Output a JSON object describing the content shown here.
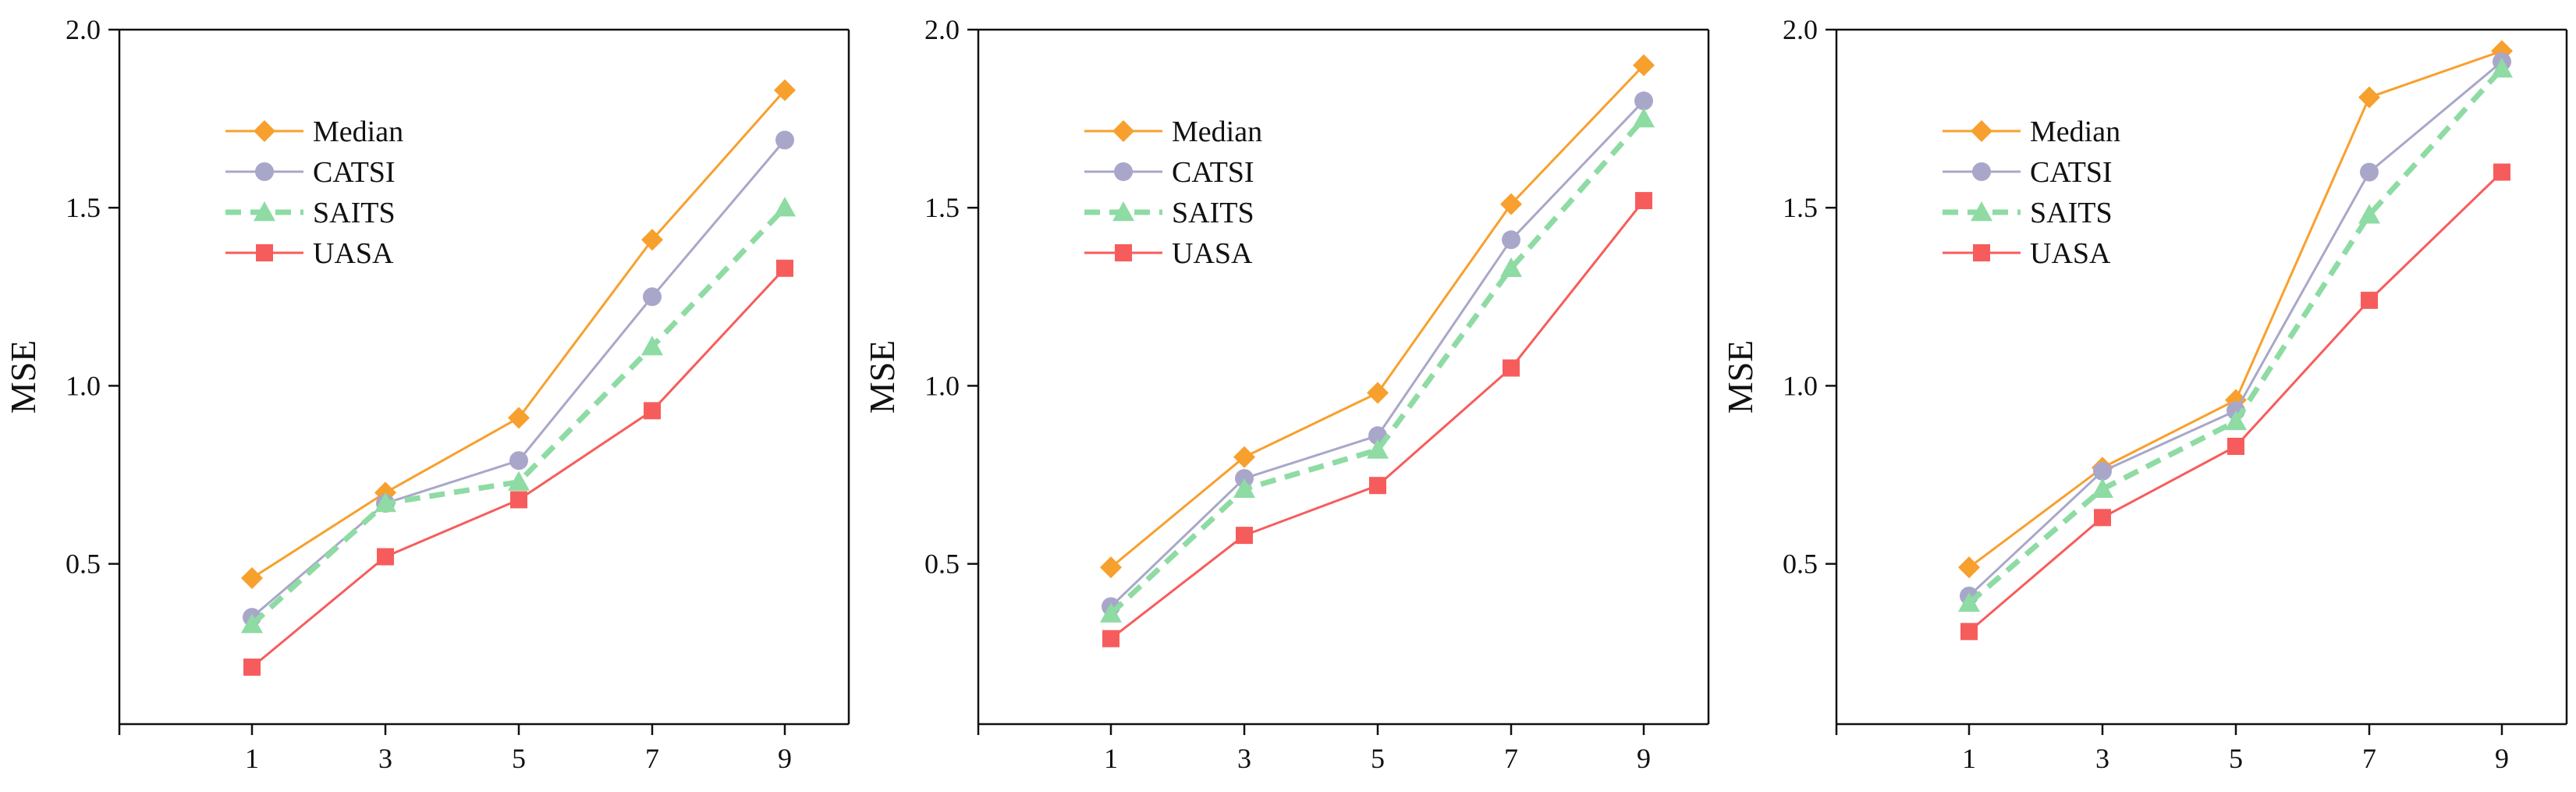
{
  "chart_data": [
    {
      "type": "line",
      "title": "",
      "xlabel": "",
      "ylabel": "MSE",
      "x": [
        1,
        3,
        5,
        7,
        9
      ],
      "xticks": [
        "1",
        "3",
        "5",
        "7",
        "9"
      ],
      "ylim": [
        0.05,
        2.0
      ],
      "yticks": [
        "0.5",
        "1.0",
        "1.5",
        "2.0"
      ],
      "legend_position": "top-left",
      "series": [
        {
          "name": "Median",
          "color": "#F7A02D",
          "marker": "diamond",
          "line": "solid",
          "values": [
            0.46,
            0.7,
            0.91,
            1.41,
            1.83
          ]
        },
        {
          "name": "CATSI",
          "color": "#A9A7C9",
          "marker": "circle",
          "line": "solid",
          "values": [
            0.35,
            0.67,
            0.79,
            1.25,
            1.69
          ]
        },
        {
          "name": "SAITS",
          "color": "#8EDBA4",
          "marker": "triangle",
          "line": "dashed",
          "values": [
            0.33,
            0.67,
            0.73,
            1.11,
            1.5
          ]
        },
        {
          "name": "UASA",
          "color": "#F75C5C",
          "marker": "square",
          "line": "solid",
          "values": [
            0.21,
            0.52,
            0.68,
            0.93,
            1.33
          ]
        }
      ]
    },
    {
      "type": "line",
      "title": "",
      "xlabel": "",
      "ylabel": "MSE",
      "x": [
        1,
        3,
        5,
        7,
        9
      ],
      "xticks": [
        "1",
        "3",
        "5",
        "7",
        "9"
      ],
      "ylim": [
        0.05,
        2.0
      ],
      "yticks": [
        "0.5",
        "1.0",
        "1.5",
        "2.0"
      ],
      "legend_position": "top-left",
      "series": [
        {
          "name": "Median",
          "color": "#F7A02D",
          "marker": "diamond",
          "line": "solid",
          "values": [
            0.49,
            0.8,
            0.98,
            1.51,
            1.9
          ]
        },
        {
          "name": "CATSI",
          "color": "#A9A7C9",
          "marker": "circle",
          "line": "solid",
          "values": [
            0.38,
            0.74,
            0.86,
            1.41,
            1.8
          ]
        },
        {
          "name": "SAITS",
          "color": "#8EDBA4",
          "marker": "triangle",
          "line": "dashed",
          "values": [
            0.36,
            0.71,
            0.82,
            1.33,
            1.75
          ]
        },
        {
          "name": "UASA",
          "color": "#F75C5C",
          "marker": "square",
          "line": "solid",
          "values": [
            0.29,
            0.58,
            0.72,
            1.05,
            1.52
          ]
        }
      ]
    },
    {
      "type": "line",
      "title": "",
      "xlabel": "",
      "ylabel": "MSE",
      "x": [
        1,
        3,
        5,
        7,
        9
      ],
      "xticks": [
        "1",
        "3",
        "5",
        "7",
        "9"
      ],
      "ylim": [
        0.05,
        2.0
      ],
      "yticks": [
        "0.5",
        "1.0",
        "1.5",
        "2.0"
      ],
      "legend_position": "top-left",
      "series": [
        {
          "name": "Median",
          "color": "#F7A02D",
          "marker": "diamond",
          "line": "solid",
          "values": [
            0.49,
            0.77,
            0.96,
            1.81,
            1.94
          ]
        },
        {
          "name": "CATSI",
          "color": "#A9A7C9",
          "marker": "circle",
          "line": "solid",
          "values": [
            0.41,
            0.76,
            0.93,
            1.6,
            1.91
          ]
        },
        {
          "name": "SAITS",
          "color": "#8EDBA4",
          "marker": "triangle",
          "line": "dashed",
          "values": [
            0.39,
            0.71,
            0.9,
            1.48,
            1.89
          ]
        },
        {
          "name": "UASA",
          "color": "#F75C5C",
          "marker": "square",
          "line": "solid",
          "values": [
            0.31,
            0.63,
            0.83,
            1.24,
            1.6
          ]
        }
      ]
    }
  ]
}
